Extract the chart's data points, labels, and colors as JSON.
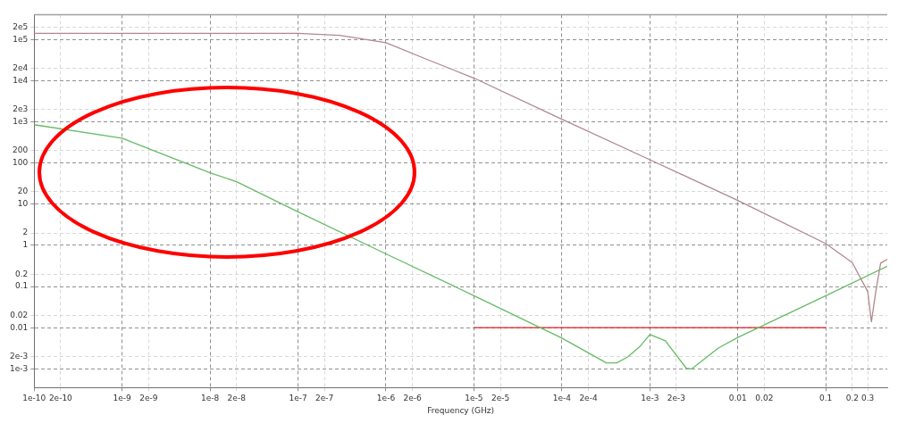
{
  "chart_data": {
    "type": "line",
    "xlabel": "Frequency (GHz)",
    "log": "xy",
    "grid": true,
    "legend": false,
    "marker": "none",
    "line_style": "solid",
    "xlim": [
      1e-10,
      0.5
    ],
    "ylim": [
      0.00035,
      400000
    ],
    "xticks": [
      {
        "value": 1e-10,
        "label": "1e-10"
      },
      {
        "value": 2e-10,
        "label": "2e-10"
      },
      {
        "value": 1e-09,
        "label": "1e-9"
      },
      {
        "value": 2e-09,
        "label": "2e-9"
      },
      {
        "value": 1e-08,
        "label": "1e-8"
      },
      {
        "value": 2e-08,
        "label": "2e-8"
      },
      {
        "value": 1e-07,
        "label": "1e-7"
      },
      {
        "value": 2e-07,
        "label": "2e-7"
      },
      {
        "value": 1e-06,
        "label": "1e-6"
      },
      {
        "value": 2e-06,
        "label": "2e-6"
      },
      {
        "value": 1e-05,
        "label": "1e-5"
      },
      {
        "value": 2e-05,
        "label": "2e-5"
      },
      {
        "value": 0.0001,
        "label": "1e-4"
      },
      {
        "value": 0.0002,
        "label": "2e-4"
      },
      {
        "value": 0.001,
        "label": "1e-3"
      },
      {
        "value": 0.002,
        "label": "2e-3"
      },
      0.01,
      0.02,
      0.1,
      0.2,
      0.3
    ],
    "yticks": [
      {
        "value": 0.001,
        "label": "1e-3"
      },
      {
        "value": 0.002,
        "label": "2e-3"
      },
      0.01,
      0.02,
      0.1,
      0.2,
      1,
      2,
      10,
      20,
      100,
      200,
      {
        "value": 1000,
        "label": "1e3"
      },
      {
        "value": 2000,
        "label": "2e3"
      },
      {
        "value": 10000,
        "label": "1e4"
      },
      {
        "value": 20000,
        "label": "2e4"
      },
      {
        "value": 100000,
        "label": "1e5"
      },
      {
        "value": 200000,
        "label": "2e5"
      }
    ],
    "series": [
      {
        "color": "#b08890",
        "x": [
          1e-10,
          1e-09,
          1e-08,
          1e-07,
          3e-07,
          1e-06,
          3e-06,
          1e-05,
          0.0001,
          0.001,
          0.01,
          0.1,
          0.2,
          0.3,
          0.33,
          0.37,
          0.42,
          0.5
        ],
        "values": [
          140000,
          140000,
          140000,
          140000,
          125000,
          83000,
          32000,
          11500,
          1150,
          120,
          12.3,
          1.1,
          0.38,
          0.075,
          0.014,
          0.075,
          0.37,
          0.46
        ]
      },
      {
        "color": "#66bb66",
        "x": [
          1e-10,
          1e-09,
          1e-08,
          2e-08,
          1e-07,
          1e-06,
          1e-05,
          0.0001,
          0.00032,
          0.00042,
          0.00056,
          0.00078,
          0.001,
          0.0015,
          0.0026,
          0.003,
          0.006,
          0.01,
          0.1,
          0.5
        ],
        "values": [
          850,
          400,
          58,
          35,
          6.5,
          0.62,
          0.06,
          0.0056,
          0.0014,
          0.0014,
          0.00195,
          0.0036,
          0.0068,
          0.0048,
          0.00103,
          0.001,
          0.0032,
          0.0058,
          0.06,
          0.31
        ]
      },
      {
        "color": "#e02020",
        "x": [
          1e-05,
          0.1
        ],
        "values": [
          0.01,
          0.01
        ]
      }
    ]
  }
}
